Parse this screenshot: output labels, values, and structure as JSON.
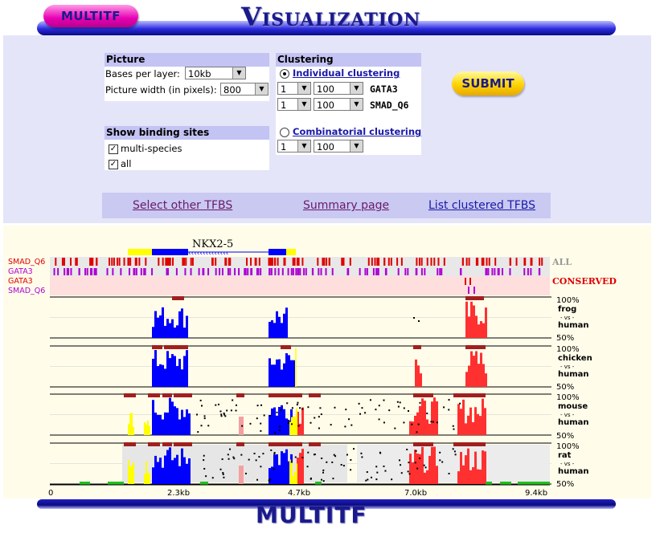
{
  "header": {
    "logo": "MULTITF",
    "title": "Visualization"
  },
  "picture": {
    "heading": "Picture",
    "bases_label": "Bases per layer:",
    "bases_value": "10kb",
    "width_label": "Picture width (in pixels):",
    "width_value": "800"
  },
  "show_sites": {
    "heading": "Show binding sites",
    "multi_label": "multi-species",
    "all_label": "all"
  },
  "clustering": {
    "heading": "Clustering",
    "individual_label": "Individual clustering",
    "rows": [
      {
        "num": "1",
        "pct": "100",
        "tf": "GATA3"
      },
      {
        "num": "1",
        "pct": "100",
        "tf": "SMAD_Q6"
      }
    ],
    "combinatorial_label": "Combinatorial clustering",
    "combo_num": "1",
    "combo_pct": "100"
  },
  "submit_label": "SUBMIT",
  "nav": {
    "select": "Select other TFBS",
    "summary": "Summary page",
    "list": "List clustered TFBS"
  },
  "viz": {
    "gene_name": "NKX2-5",
    "all_label": "ALL",
    "conserved_label": "CONSERVED",
    "track_labels": [
      "SMAD_Q6",
      "GATA3",
      "GATA3",
      "SMAD_Q6"
    ],
    "panels": [
      {
        "species": "frog",
        "vs": "- vs -",
        "ref": "human",
        "top": "100%",
        "bottom": "50%"
      },
      {
        "species": "chicken",
        "vs": "- vs -",
        "ref": "human",
        "top": "100%",
        "bottom": "50%"
      },
      {
        "species": "mouse",
        "vs": "- vs -",
        "ref": "human",
        "top": "100%",
        "bottom": "50%"
      },
      {
        "species": "rat",
        "vs": "- vs -",
        "ref": "human",
        "top": "100%",
        "bottom": "50%"
      }
    ],
    "axis_ticks": [
      "0",
      "2.3kb",
      "4.7kb",
      "7.0kb",
      "9.4kb"
    ]
  },
  "footer": {
    "logo": "MULTITF"
  },
  "colors": {
    "navy": "#1a1a8c",
    "smad": "#e00000",
    "gata": "#b000d0",
    "conserved": "#e00000",
    "coding": "#0000ff",
    "utr": "#ffff00",
    "cns": "#ff3030"
  }
}
